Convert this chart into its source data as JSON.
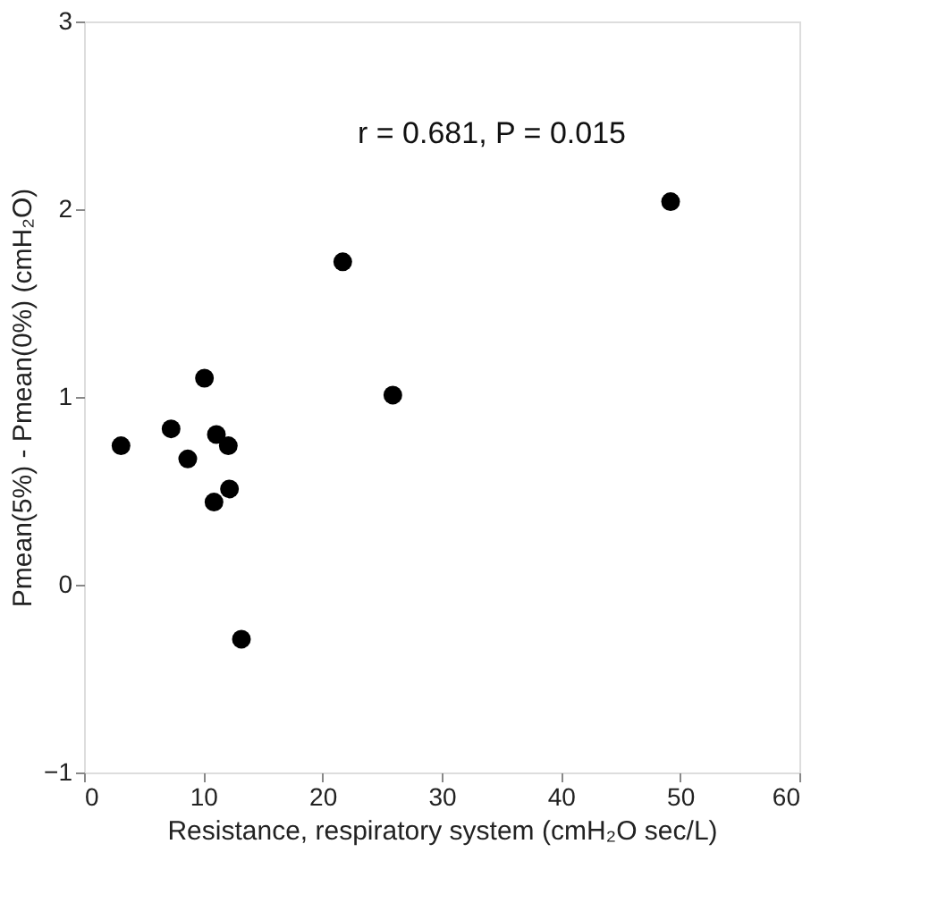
{
  "chart_data": {
    "type": "scatter",
    "xlabel": "Resistance, respiratory system (cmH₂O sec/L)",
    "ylabel": "Pmean(5%) - Pmean(0%) (cmH₂O)",
    "annotations": [
      "r = 0.681, P = 0.015"
    ],
    "x": [
      3.1,
      7.3,
      8.7,
      10.1,
      11.1,
      12.1,
      10.9,
      12.2,
      13.2,
      21.7,
      25.9,
      49.2
    ],
    "series": [
      {
        "color": "#000000",
        "values": [
          0.74,
          0.83,
          0.67,
          1.1,
          0.8,
          0.74,
          0.44,
          0.51,
          -0.29,
          1.72,
          1.01,
          2.04
        ]
      }
    ],
    "xlim": [
      0,
      60
    ],
    "xticks": [
      0,
      10,
      20,
      30,
      40,
      50,
      60
    ],
    "ylim": [
      -1,
      3
    ],
    "yticks": [
      -1,
      0,
      1,
      2,
      3
    ],
    "grid": false,
    "marker": "circle"
  }
}
